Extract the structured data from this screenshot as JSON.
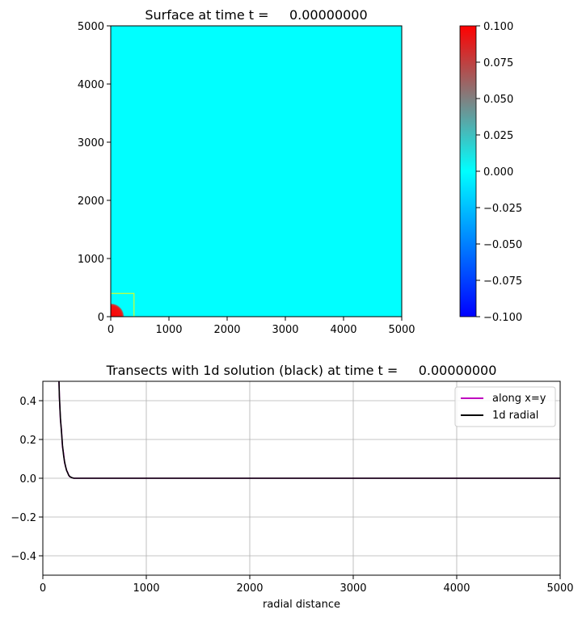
{
  "chart_data": [
    {
      "type": "heatmap",
      "title": "Surface at time t =     0.00000000",
      "xlim": [
        0,
        5000
      ],
      "ylim": [
        0,
        5000
      ],
      "xticks": [
        "0",
        "1000",
        "2000",
        "3000",
        "4000",
        "5000"
      ],
      "yticks": [
        "0",
        "1000",
        "2000",
        "3000",
        "4000",
        "5000"
      ],
      "background_value": 0.0,
      "features": [
        {
          "kind": "quarter-disk",
          "center": [
            0,
            0
          ],
          "radius": 230,
          "value": 0.1
        },
        {
          "kind": "outlined-box",
          "x": [
            0,
            400
          ],
          "y": [
            0,
            400
          ],
          "color": "#ffff00"
        }
      ],
      "colorbar": {
        "range": [
          -0.1,
          0.1
        ],
        "ticks": [
          "0.100",
          "0.075",
          "0.050",
          "0.025",
          "0.000",
          "−0.025",
          "−0.050",
          "−0.075",
          "−0.100"
        ],
        "colors": [
          "#0000ff",
          "#00ffff",
          "#808080",
          "#ff0000"
        ]
      }
    },
    {
      "type": "line",
      "title": "Transects with 1d solution (black) at time t =     0.00000000",
      "xlabel": "radial distance",
      "ylabel": "",
      "xlim": [
        0,
        5000
      ],
      "ylim": [
        -0.5,
        0.5
      ],
      "xticks": [
        "0",
        "1000",
        "2000",
        "3000",
        "4000",
        "5000"
      ],
      "yticks": [
        "0.4",
        "0.2",
        "0.0",
        "−0.2",
        "−0.4"
      ],
      "grid": true,
      "legend_position": "upper-right",
      "series": [
        {
          "name": "along x=y",
          "color": "#bf00bf",
          "x": [
            150,
            160,
            170,
            180,
            190,
            200,
            210,
            220,
            230,
            240,
            250,
            260,
            280,
            300,
            350,
            500,
            1000,
            2000,
            3000,
            4000,
            5000
          ],
          "y": [
            0.62,
            0.42,
            0.3,
            0.25,
            0.16,
            0.13,
            0.08,
            0.06,
            0.04,
            0.03,
            0.015,
            0.008,
            0.003,
            0.0,
            0.0,
            0.0,
            0.0,
            0.0,
            0.0,
            0.0,
            0.0
          ]
        },
        {
          "name": "1d radial",
          "color": "#000000",
          "x": [
            150,
            160,
            170,
            180,
            190,
            200,
            210,
            220,
            230,
            240,
            250,
            260,
            280,
            300,
            350,
            500,
            1000,
            2000,
            3000,
            4000,
            5000
          ],
          "y": [
            0.62,
            0.42,
            0.31,
            0.24,
            0.17,
            0.12,
            0.085,
            0.06,
            0.04,
            0.028,
            0.016,
            0.009,
            0.003,
            0.0,
            0.0,
            0.0,
            0.0,
            0.0,
            0.0,
            0.0,
            0.0
          ]
        }
      ]
    }
  ]
}
